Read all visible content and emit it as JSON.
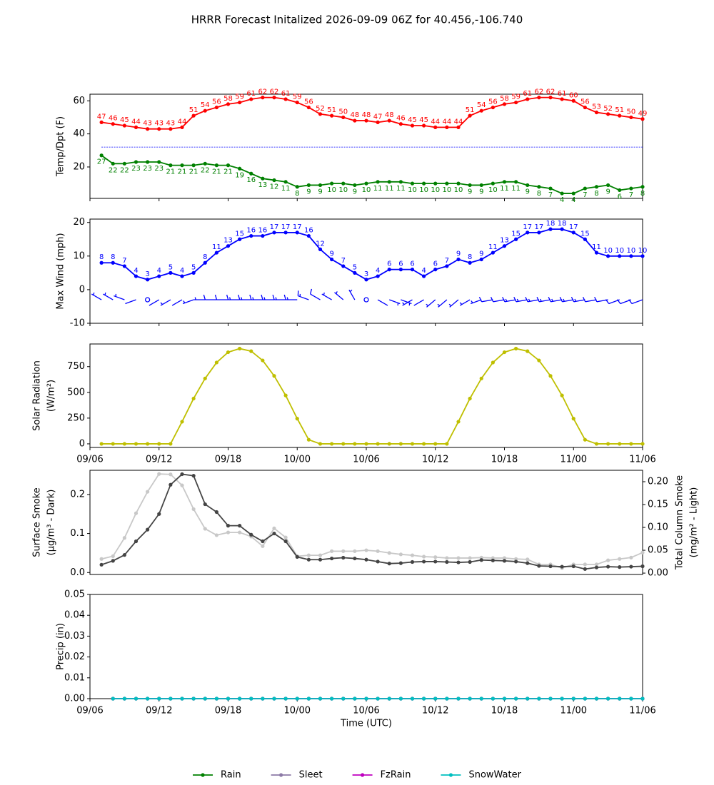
{
  "chart_data": [
    {
      "type": "line",
      "title": "HRRR Forecast Initalized 2026-09-09 06Z for 40.456,-106.740",
      "ylabel": [
        "Temp/Dpt (F)"
      ],
      "x": [
        1,
        2,
        3,
        4,
        5,
        6,
        7,
        8,
        9,
        10,
        11,
        12,
        13,
        14,
        15,
        16,
        17,
        18,
        19,
        20,
        21,
        22,
        23,
        24,
        25,
        26,
        27,
        28,
        29,
        30,
        31,
        32,
        33,
        34,
        35,
        36,
        37,
        38,
        39,
        40,
        41,
        42,
        43,
        44,
        45,
        46,
        47,
        48
      ],
      "xlim": [
        0,
        48
      ],
      "xticks": [
        0,
        6,
        12,
        18,
        24,
        30,
        36,
        42,
        48
      ],
      "xtick_labels": false,
      "ylim": [
        1,
        64
      ],
      "yticks": [
        20,
        40,
        60
      ],
      "hlines": [
        {
          "value": 32,
          "color": "#0000ff"
        }
      ],
      "series": [
        {
          "color": "#ff0000",
          "label_position": "above",
          "values": [
            47,
            46,
            45,
            44,
            43,
            43,
            43,
            44,
            51,
            54,
            56,
            58,
            59,
            61,
            62,
            62,
            61,
            59,
            56,
            52,
            51,
            50,
            48,
            48,
            47,
            48,
            46,
            45,
            45,
            44,
            44,
            44,
            51,
            54,
            56,
            58,
            59,
            61,
            62,
            62,
            61,
            60,
            56,
            53,
            52,
            51,
            50,
            49
          ]
        },
        {
          "color": "#008000",
          "label_position": "below",
          "values": [
            27,
            22,
            22,
            23,
            23,
            23,
            21,
            21,
            21,
            22,
            21,
            21,
            19,
            16,
            13,
            12,
            11,
            8,
            9,
            9,
            10,
            10,
            9,
            10,
            11,
            11,
            11,
            10,
            10,
            10,
            10,
            10,
            9,
            9,
            10,
            11,
            11,
            9,
            8,
            7,
            4,
            4,
            7,
            8,
            9,
            6,
            7,
            8
          ]
        }
      ]
    },
    {
      "type": "line",
      "ylabel": [
        "Max Wind (mph)"
      ],
      "x": [
        1,
        2,
        3,
        4,
        5,
        6,
        7,
        8,
        9,
        10,
        11,
        12,
        13,
        14,
        15,
        16,
        17,
        18,
        19,
        20,
        21,
        22,
        23,
        24,
        25,
        26,
        27,
        28,
        29,
        30,
        31,
        32,
        33,
        34,
        35,
        36,
        37,
        38,
        39,
        40,
        41,
        42,
        43,
        44,
        45,
        46,
        47,
        48
      ],
      "xlim": [
        0,
        48
      ],
      "xticks": [
        0,
        6,
        12,
        18,
        24,
        30,
        36,
        42,
        48
      ],
      "xtick_labels": false,
      "ylim": [
        -10,
        21
      ],
      "yticks": [
        -10,
        0,
        10,
        20
      ],
      "barbs": {
        "y": -3,
        "color": "#0000ff",
        "directions": [
          300,
          300,
          290,
          250,
          270,
          240,
          240,
          240,
          250,
          270,
          270,
          270,
          270,
          270,
          270,
          270,
          270,
          270,
          290,
          300,
          300,
          310,
          330,
          270,
          120,
          110,
          110,
          240,
          240,
          230,
          230,
          230,
          240,
          250,
          260,
          260,
          260,
          260,
          260,
          260,
          260,
          260,
          260,
          260,
          260,
          250,
          250,
          250
        ]
      },
      "series": [
        {
          "color": "#0000ff",
          "label_position": "above",
          "values": [
            8,
            8,
            7,
            4,
            3,
            4,
            5,
            4,
            5,
            8,
            11,
            13,
            15,
            16,
            16,
            17,
            17,
            17,
            16,
            12,
            9,
            7,
            5,
            3,
            4,
            6,
            6,
            6,
            4,
            6,
            7,
            9,
            8,
            9,
            11,
            13,
            15,
            17,
            17,
            18,
            18,
            17,
            15,
            11,
            10,
            10,
            10,
            10
          ]
        }
      ]
    },
    {
      "type": "line",
      "ylabel": [
        "Solar Radiation",
        "(W/m²)"
      ],
      "x": [
        1,
        2,
        3,
        4,
        5,
        6,
        7,
        8,
        9,
        10,
        11,
        12,
        13,
        14,
        15,
        16,
        17,
        18,
        19,
        20,
        21,
        22,
        23,
        24,
        25,
        26,
        27,
        28,
        29,
        30,
        31,
        32,
        33,
        34,
        35,
        36,
        37,
        38,
        39,
        40,
        41,
        42,
        43,
        44,
        45,
        46,
        47,
        48
      ],
      "xlim": [
        0,
        48
      ],
      "xticks": [
        {
          "value": 0,
          "label": "09/06"
        },
        {
          "value": 6,
          "label": "09/12"
        },
        {
          "value": 12,
          "label": "09/18"
        },
        {
          "value": 18,
          "label": "10/00"
        },
        {
          "value": 24,
          "label": "10/06"
        },
        {
          "value": 30,
          "label": "10/12"
        },
        {
          "value": 36,
          "label": "10/18"
        },
        {
          "value": 42,
          "label": "11/00"
        },
        {
          "value": 48,
          "label": "11/06"
        }
      ],
      "ylim": [
        -35,
        970
      ],
      "yticks": [
        0,
        250,
        500,
        750
      ],
      "series": [
        {
          "color": "#bfbf00",
          "values": [
            0,
            0,
            0,
            0,
            0,
            0,
            0,
            215,
            440,
            635,
            790,
            890,
            925,
            900,
            810,
            660,
            470,
            245,
            40,
            0,
            0,
            0,
            0,
            0,
            0,
            0,
            0,
            0,
            0,
            0,
            0,
            215,
            440,
            635,
            790,
            890,
            925,
            900,
            810,
            660,
            470,
            245,
            40,
            0,
            0,
            0,
            0,
            0
          ]
        }
      ]
    },
    {
      "type": "line",
      "ylabel": [
        "Surface Smoke",
        "(µg/m³ - Dark)"
      ],
      "y2label": [
        "Total Column Smoke",
        "(mg/m² - Light)"
      ],
      "x": [
        1,
        2,
        3,
        4,
        5,
        6,
        7,
        8,
        9,
        10,
        11,
        12,
        13,
        14,
        15,
        16,
        17,
        18,
        19,
        20,
        21,
        22,
        23,
        24,
        25,
        26,
        27,
        28,
        29,
        30,
        31,
        32,
        33,
        34,
        35,
        36,
        37,
        38,
        39,
        40,
        41,
        42,
        43,
        44,
        45,
        46,
        47,
        48
      ],
      "xlim": [
        0,
        48
      ],
      "ylim": [
        -0.005,
        0.262
      ],
      "yticks": [
        {
          "value": 0,
          "label": "0.0"
        },
        0.1,
        0.2
      ],
      "y2lim": [
        -0.003,
        0.225
      ],
      "y2ticks": [
        {
          "value": 0,
          "label": "0.00"
        },
        {
          "value": 0.05,
          "label": "0.05"
        },
        {
          "value": 0.1,
          "label": "0.10"
        },
        {
          "value": 0.15,
          "label": "0.15"
        },
        {
          "value": 0.2,
          "label": "0.20"
        }
      ],
      "series": [
        {
          "color": "#c8c8c8",
          "axis": "y2",
          "values": [
            0.031,
            0.037,
            0.077,
            0.131,
            0.178,
            0.217,
            0.216,
            0.192,
            0.14,
            0.097,
            0.083,
            0.089,
            0.089,
            0.08,
            0.059,
            0.098,
            0.078,
            0.037,
            0.039,
            0.039,
            0.048,
            0.048,
            0.048,
            0.05,
            0.048,
            0.044,
            0.041,
            0.039,
            0.036,
            0.035,
            0.033,
            0.033,
            0.033,
            0.034,
            0.033,
            0.033,
            0.031,
            0.03,
            0.019,
            0.019,
            0.011,
            0.019,
            0.019,
            0.019,
            0.028,
            0.031,
            0.034,
            0.045
          ]
        },
        {
          "color": "#444444",
          "values": [
            0.02,
            0.03,
            0.045,
            0.08,
            0.11,
            0.15,
            0.225,
            0.252,
            0.248,
            0.175,
            0.155,
            0.12,
            0.12,
            0.097,
            0.08,
            0.1,
            0.08,
            0.04,
            0.033,
            0.033,
            0.036,
            0.038,
            0.036,
            0.033,
            0.028,
            0.023,
            0.024,
            0.027,
            0.028,
            0.028,
            0.027,
            0.026,
            0.027,
            0.032,
            0.031,
            0.03,
            0.028,
            0.024,
            0.017,
            0.016,
            0.015,
            0.016,
            0.009,
            0.013,
            0.015,
            0.014,
            0.015,
            0.016
          ]
        }
      ]
    },
    {
      "type": "line",
      "ylabel": [
        "Precip (in)"
      ],
      "xlabel": "Time (UTC)",
      "legend": "bottom",
      "x": [
        2,
        3,
        4,
        5,
        6,
        7,
        8,
        9,
        10,
        11,
        12,
        13,
        14,
        15,
        16,
        17,
        18,
        19,
        20,
        21,
        22,
        23,
        24,
        25,
        26,
        27,
        28,
        29,
        30,
        31,
        32,
        33,
        34,
        35,
        36,
        37,
        38,
        39,
        40,
        41,
        42,
        43,
        44,
        45,
        46,
        47,
        48
      ],
      "xlim": [
        0,
        48
      ],
      "xticks": [
        {
          "value": 0,
          "label": "09/06"
        },
        {
          "value": 6,
          "label": "09/12"
        },
        {
          "value": 12,
          "label": "09/18"
        },
        {
          "value": 18,
          "label": "10/00"
        },
        {
          "value": 24,
          "label": "10/06"
        },
        {
          "value": 30,
          "label": "10/12"
        },
        {
          "value": 36,
          "label": "10/18"
        },
        {
          "value": 42,
          "label": "11/00"
        },
        {
          "value": 48,
          "label": "11/06"
        }
      ],
      "ylim": [
        0,
        0.05
      ],
      "yticks": [
        {
          "value": 0,
          "label": "0.00"
        },
        {
          "value": 0.01,
          "label": "0.01"
        },
        {
          "value": 0.02,
          "label": "0.02"
        },
        {
          "value": 0.03,
          "label": "0.03"
        },
        {
          "value": 0.04,
          "label": "0.04"
        },
        {
          "value": 0.05,
          "label": "0.05"
        }
      ],
      "series": [
        {
          "name": "Rain",
          "color": "#008000",
          "values": [
            0,
            0,
            0,
            0,
            0,
            0,
            0,
            0,
            0,
            0,
            0,
            0,
            0,
            0,
            0,
            0,
            0,
            0,
            0,
            0,
            0,
            0,
            0,
            0,
            0,
            0,
            0,
            0,
            0,
            0,
            0,
            0,
            0,
            0,
            0,
            0,
            0,
            0,
            0,
            0,
            0,
            0,
            0,
            0,
            0,
            0,
            0
          ]
        },
        {
          "name": "Sleet",
          "color": "#8c7aa6",
          "values": [
            0,
            0,
            0,
            0,
            0,
            0,
            0,
            0,
            0,
            0,
            0,
            0,
            0,
            0,
            0,
            0,
            0,
            0,
            0,
            0,
            0,
            0,
            0,
            0,
            0,
            0,
            0,
            0,
            0,
            0,
            0,
            0,
            0,
            0,
            0,
            0,
            0,
            0,
            0,
            0,
            0,
            0,
            0,
            0,
            0,
            0,
            0
          ]
        },
        {
          "name": "FzRain",
          "color": "#bf00bf",
          "values": [
            0,
            0,
            0,
            0,
            0,
            0,
            0,
            0,
            0,
            0,
            0,
            0,
            0,
            0,
            0,
            0,
            0,
            0,
            0,
            0,
            0,
            0,
            0,
            0,
            0,
            0,
            0,
            0,
            0,
            0,
            0,
            0,
            0,
            0,
            0,
            0,
            0,
            0,
            0,
            0,
            0,
            0,
            0,
            0,
            0,
            0,
            0
          ]
        },
        {
          "name": "SnowWater",
          "color": "#00bfbf",
          "values": [
            0,
            0,
            0,
            0,
            0,
            0,
            0,
            0,
            0,
            0,
            0,
            0,
            0,
            0,
            0,
            0,
            0,
            0,
            0,
            0,
            0,
            0,
            0,
            0,
            0,
            0,
            0,
            0,
            0,
            0,
            0,
            0,
            0,
            0,
            0,
            0,
            0,
            0,
            0,
            0,
            0,
            0,
            0,
            0,
            0,
            0,
            0
          ]
        }
      ]
    }
  ]
}
